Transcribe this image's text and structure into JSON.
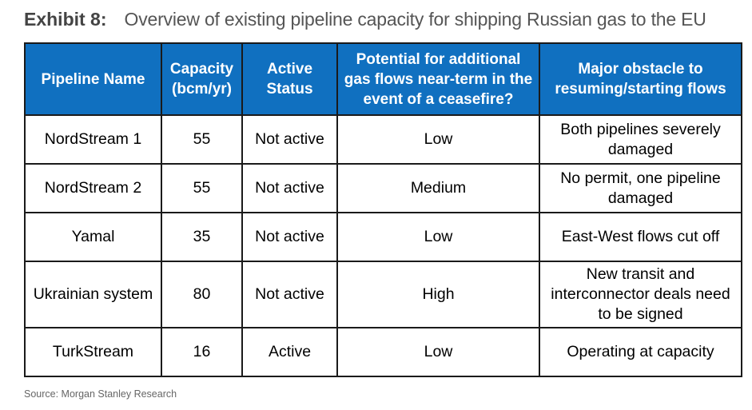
{
  "exhibit": {
    "label": "Exhibit 8:",
    "caption": "Overview of existing pipeline capacity for shipping Russian gas to the EU"
  },
  "table": {
    "headers": [
      "Pipeline Name",
      "Capacity (bcm/yr)",
      "Active Status",
      "Potential for additional gas flows near-term in the event of a ceasefire?",
      "Major obstacle to resuming/starting flows"
    ],
    "rows": [
      [
        "NordStream 1",
        "55",
        "Not active",
        "Low",
        "Both pipelines severely damaged"
      ],
      [
        "NordStream 2",
        "55",
        "Not active",
        "Medium",
        "No permit, one pipeline damaged"
      ],
      [
        "Yamal",
        "35",
        "Not active",
        "Low",
        "East-West flows cut off"
      ],
      [
        "Ukrainian system",
        "80",
        "Not active",
        "High",
        "New transit and interconnector deals need to be signed"
      ],
      [
        "TurkStream",
        "16",
        "Active",
        "Low",
        "Operating at capacity"
      ]
    ]
  },
  "source": "Source: Morgan Stanley Research",
  "colors": {
    "header_background": "#1070c0",
    "header_text": "#ffffff",
    "border": "#1a1a1a"
  }
}
